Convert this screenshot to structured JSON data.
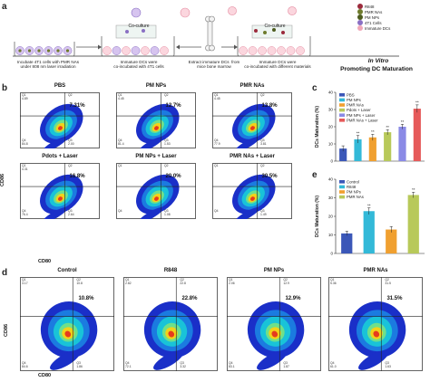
{
  "panel_a": {
    "letter": "a",
    "coculture_labels": [
      "Co-culture",
      "Co-culture"
    ],
    "steps": [
      "Incubate 4T1 cells with PMR NAs\nunder 808 nm laser irradiation",
      "Immature DCs were\nco-incubated with 4T1 cells",
      "Extract immature DCs  from\nmice bone marrow",
      "Immature DCs were\nco-incubated with different materials"
    ],
    "legend": [
      "R848",
      "PMR NAs",
      "PM NPs",
      "4T1 Cells",
      "Immature DCs"
    ],
    "legend_colors": [
      "#9b2a3c",
      "#6e7b2c",
      "#4d5c1e",
      "#8a6fc3",
      "#f0a7b8"
    ],
    "in_vitro": "In Vitro",
    "promoting": "Promoting DC Maturation"
  },
  "panel_b": {
    "letter": "b",
    "plots": [
      {
        "title": "PBS",
        "pct": "7.31%",
        "q": [
          "Q1",
          "4.89",
          "Q2",
          "",
          "Q4",
          "84.8",
          "Q3",
          "2.00"
        ]
      },
      {
        "title": "PM NPs",
        "pct": "12.7%",
        "q": [
          "Q1",
          "4.45",
          "Q2",
          "",
          "Q4",
          "81.4",
          "Q3",
          "1.53"
        ]
      },
      {
        "title": "PMR NAs",
        "pct": "13.8%",
        "q": [
          "Q1",
          "4.45",
          "Q2",
          "",
          "Q4",
          "77.9",
          "Q3",
          "3.81"
        ]
      },
      {
        "title": "Pdots + Laser",
        "pct": "16.8%",
        "q": [
          "Q1",
          "4.31",
          "Q2",
          "",
          "Q4",
          "76.4",
          "Q3",
          "2.64"
        ]
      },
      {
        "title": "PM NPs + Laser",
        "pct": "20.0%",
        "q": [
          "Q1",
          "",
          "Q2",
          "",
          "Q4",
          "",
          "Q3",
          "1.08"
        ]
      },
      {
        "title": "PMR NAs + Laser",
        "pct": "30.5%",
        "q": [
          "Q1",
          "",
          "Q2",
          "",
          "Q4",
          "",
          "Q3",
          "1.49"
        ]
      }
    ],
    "ylabel": "CD86",
    "xlabel": "CD80"
  },
  "panel_d": {
    "letter": "d",
    "plots": [
      {
        "title": "Control",
        "pct": "10.8%",
        "q": [
          "Q1",
          "3.17",
          "Q2",
          "10.8",
          "Q4",
          "84.6",
          "Q3",
          "1.86"
        ]
      },
      {
        "title": "R848",
        "pct": "22.8%",
        "q": [
          "Q1",
          "2.82",
          "Q2",
          "22.8",
          "Q4",
          "72.1",
          "Q3",
          "3.32"
        ]
      },
      {
        "title": "PM NPs",
        "pct": "12.9%",
        "q": [
          "Q1",
          "2.06",
          "Q2",
          "12.9",
          "Q4",
          "83.1",
          "Q3",
          "1.87"
        ]
      },
      {
        "title": "PMR NAs",
        "pct": "31.5%",
        "q": [
          "Q1",
          "5.36",
          "Q2",
          "31.5",
          "Q4",
          "61.0",
          "Q3",
          "1.63"
        ]
      }
    ],
    "ylabel": "CD86",
    "xlabel": "CD80"
  },
  "colors": {
    "density_outer": "#1a2fc8",
    "density_mid": "#19c3d8",
    "density_inner": "#f2d21a",
    "density_core": "#e63a1e"
  },
  "chart_data": [
    {
      "type": "bar",
      "letter": "c",
      "ylabel": "DCs Maturation (%)",
      "ylim": [
        0,
        40
      ],
      "yticks": [
        "0",
        "10",
        "20",
        "30",
        "40"
      ],
      "categories": [
        "PBS",
        "PM NPs",
        "PMR NAs",
        "Pdots + Laser",
        "PM NPs + Laser",
        "PMR NAs + Laser"
      ],
      "values": [
        7.3,
        12.7,
        13.8,
        16.8,
        20.0,
        30.5
      ],
      "errors": [
        1.6,
        2.2,
        1.8,
        1.5,
        1.4,
        2.2
      ],
      "sig": [
        "",
        "**",
        "**",
        "**",
        "**",
        "**"
      ],
      "colors": [
        "#3b57b8",
        "#33b9d8",
        "#f0a030",
        "#b8c95a",
        "#8a8ae6",
        "#e65a5a"
      ],
      "legend_position": "top-left"
    },
    {
      "type": "bar",
      "letter": "e",
      "ylabel": "DCs Maturation (%)",
      "ylim": [
        0,
        40
      ],
      "yticks": [
        "0",
        "10",
        "20",
        "30",
        "40"
      ],
      "categories": [
        "Control",
        "R848",
        "PM NPs",
        "PMR NAs"
      ],
      "values": [
        10.8,
        22.8,
        12.9,
        31.5
      ],
      "errors": [
        1.2,
        1.8,
        1.6,
        1.5
      ],
      "sig": [
        "",
        "**",
        "",
        "**"
      ],
      "colors": [
        "#3b57b8",
        "#33b9d8",
        "#f0a030",
        "#b8c95a"
      ],
      "legend_position": "top-left"
    }
  ]
}
